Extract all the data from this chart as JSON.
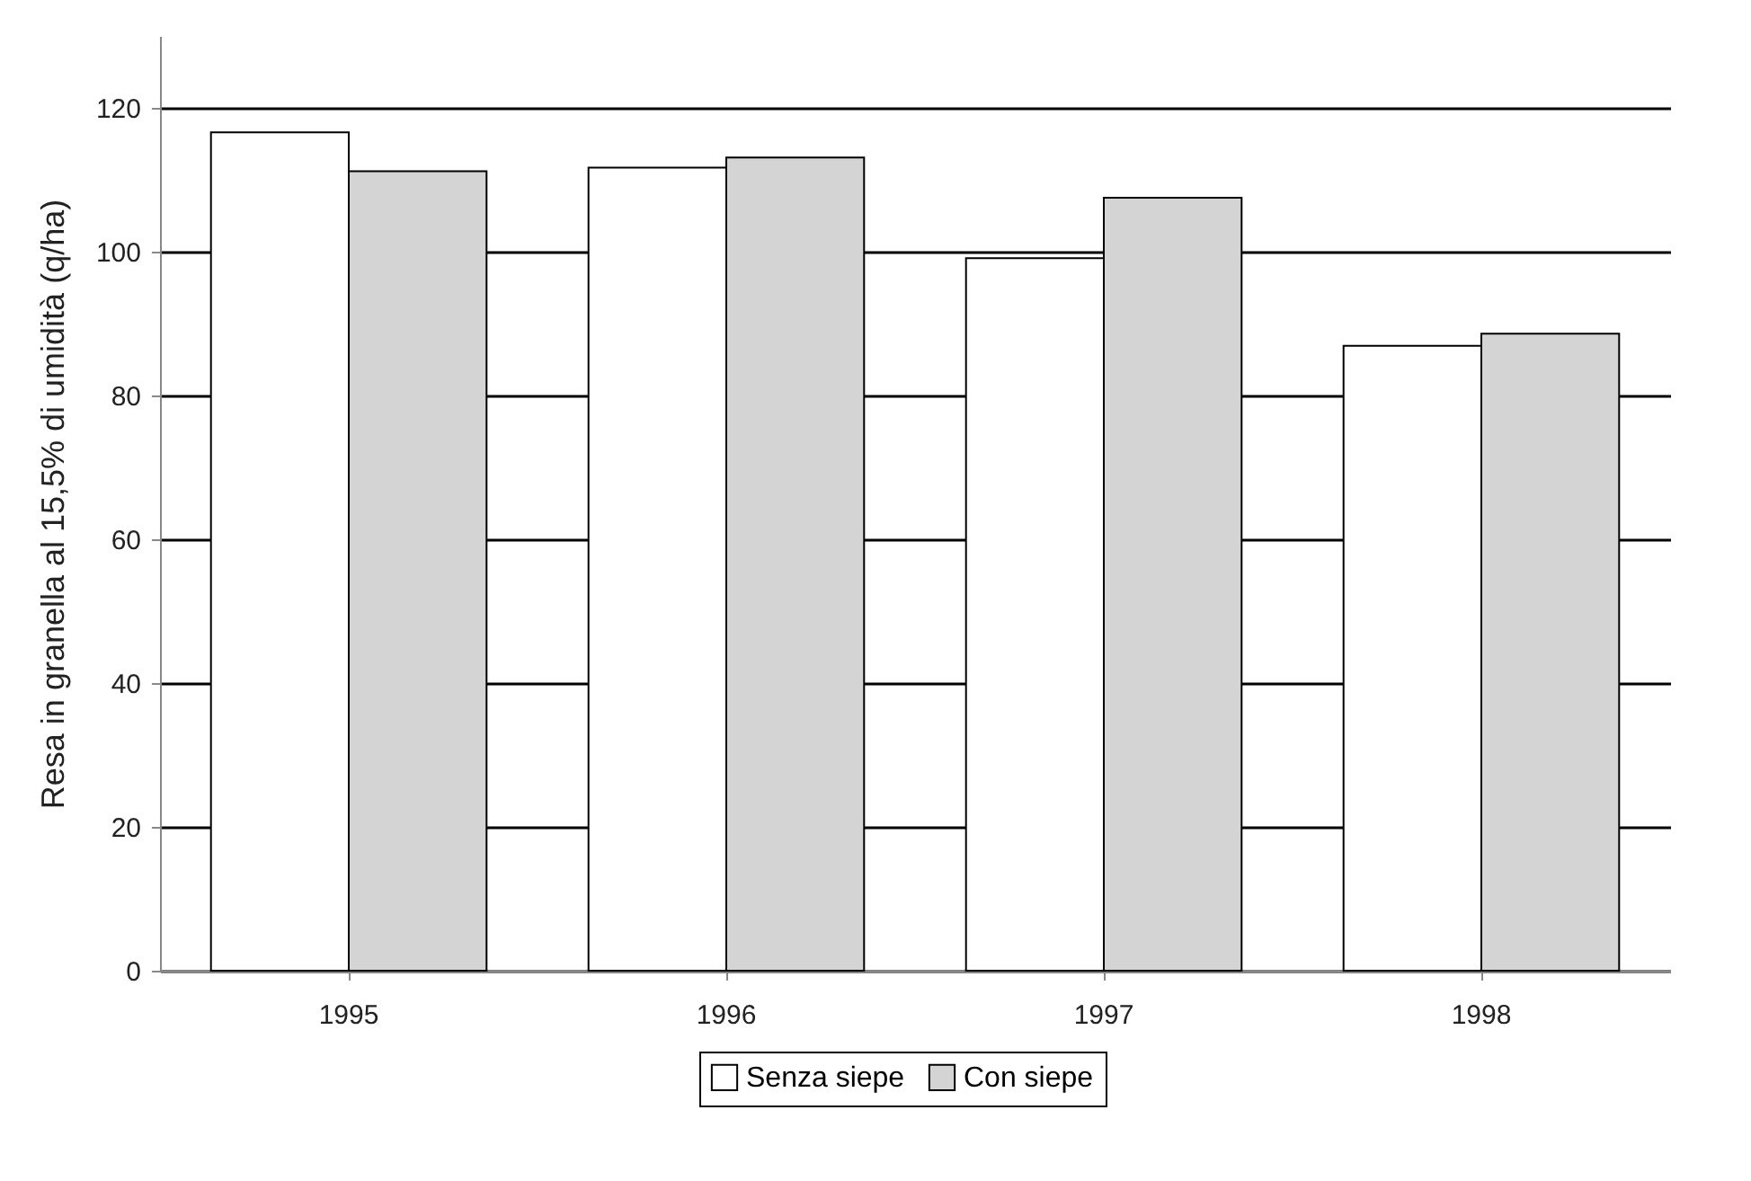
{
  "chart_data": {
    "type": "bar",
    "ylabel": "Resa in granella al 15,5% di umidità (q/ha)",
    "categories": [
      "1995",
      "1996",
      "1997",
      "1998"
    ],
    "series": [
      {
        "name": "Senza siepe",
        "color": "#ffffff",
        "values": [
          116.6,
          111.7,
          99.1,
          86.9
        ]
      },
      {
        "name": "Con siepe",
        "color": "#d4d4d4",
        "values": [
          111.2,
          113.1,
          107.5,
          88.6
        ]
      }
    ],
    "ylim": [
      0,
      130
    ],
    "yticks": [
      0,
      20,
      40,
      60,
      80,
      100,
      120
    ],
    "grid": "y",
    "legend": "bottom"
  }
}
